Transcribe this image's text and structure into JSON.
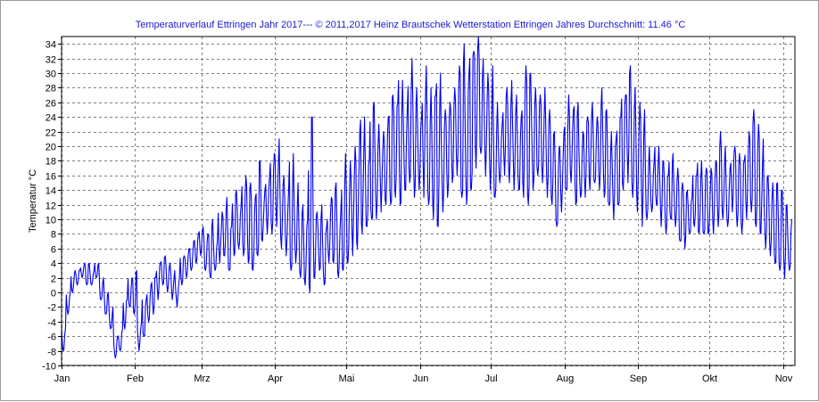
{
  "chart_data": {
    "type": "line",
    "title": "Temperaturverlauf Ettringen Jahr 2017--- © 2011,2017 Heinz Brautschek Wetterstation Ettringen Jahres Durchschnitt: 11.46 °C",
    "xlabel": "",
    "ylabel": "Temperatur °C",
    "ylim": [
      -10,
      35
    ],
    "yticks": [
      -10,
      -8,
      -6,
      -4,
      -2,
      0,
      2,
      4,
      6,
      8,
      10,
      12,
      14,
      16,
      18,
      20,
      22,
      24,
      26,
      28,
      30,
      32,
      34
    ],
    "xlim": [
      "2017-01-01",
      "2017-11-06"
    ],
    "xticks": [
      {
        "label": "Jan",
        "date": "2017-01-01"
      },
      {
        "label": "Feb",
        "date": "2017-02-01"
      },
      {
        "label": "Mrz",
        "date": "2017-03-01"
      },
      {
        "label": "Apr",
        "date": "2017-04-01"
      },
      {
        "label": "Mai",
        "date": "2017-05-01"
      },
      {
        "label": "Jun",
        "date": "2017-06-01"
      },
      {
        "label": "Jul",
        "date": "2017-07-01"
      },
      {
        "label": "Aug",
        "date": "2017-08-01"
      },
      {
        "label": "Sep",
        "date": "2017-09-01"
      },
      {
        "label": "Okt",
        "date": "2017-10-01"
      },
      {
        "label": "Nov",
        "date": "2017-11-01"
      }
    ],
    "grid": true,
    "legend": "none",
    "line_color": "#0000ee",
    "series": [
      {
        "name": "",
        "x": [
          "2017-01-01",
          "2017-01-03",
          "2017-01-05",
          "2017-01-07",
          "2017-01-09",
          "2017-01-11",
          "2017-01-13",
          "2017-01-15",
          "2017-01-17",
          "2017-01-19",
          "2017-01-21",
          "2017-01-23",
          "2017-01-25",
          "2017-01-27",
          "2017-01-29",
          "2017-01-31",
          "2017-02-02",
          "2017-02-04",
          "2017-02-06",
          "2017-02-08",
          "2017-02-10",
          "2017-02-12",
          "2017-02-14",
          "2017-02-16",
          "2017-02-18",
          "2017-02-20",
          "2017-02-22",
          "2017-02-24",
          "2017-02-26",
          "2017-02-28",
          "2017-03-02",
          "2017-03-04",
          "2017-03-06",
          "2017-03-08",
          "2017-03-10",
          "2017-03-12",
          "2017-03-14",
          "2017-03-16",
          "2017-03-18",
          "2017-03-20",
          "2017-03-22",
          "2017-03-24",
          "2017-03-26",
          "2017-03-28",
          "2017-03-30",
          "2017-04-01",
          "2017-04-03",
          "2017-04-05",
          "2017-04-07",
          "2017-04-09",
          "2017-04-11",
          "2017-04-13",
          "2017-04-15",
          "2017-04-17",
          "2017-04-19",
          "2017-04-21",
          "2017-04-23",
          "2017-04-25",
          "2017-04-27",
          "2017-04-29",
          "2017-05-01",
          "2017-05-03",
          "2017-05-05",
          "2017-05-07",
          "2017-05-09",
          "2017-05-11",
          "2017-05-13",
          "2017-05-15",
          "2017-05-17",
          "2017-05-19",
          "2017-05-21",
          "2017-05-23",
          "2017-05-25",
          "2017-05-27",
          "2017-05-29",
          "2017-05-31",
          "2017-06-02",
          "2017-06-04",
          "2017-06-06",
          "2017-06-08",
          "2017-06-10",
          "2017-06-12",
          "2017-06-14",
          "2017-06-16",
          "2017-06-18",
          "2017-06-20",
          "2017-06-22",
          "2017-06-24",
          "2017-06-26",
          "2017-06-28",
          "2017-06-30",
          "2017-07-02",
          "2017-07-04",
          "2017-07-06",
          "2017-07-08",
          "2017-07-10",
          "2017-07-12",
          "2017-07-14",
          "2017-07-16",
          "2017-07-18",
          "2017-07-20",
          "2017-07-22",
          "2017-07-24",
          "2017-07-26",
          "2017-07-28",
          "2017-07-30",
          "2017-08-01",
          "2017-08-03",
          "2017-08-05",
          "2017-08-07",
          "2017-08-09",
          "2017-08-11",
          "2017-08-13",
          "2017-08-15",
          "2017-08-17",
          "2017-08-19",
          "2017-08-21",
          "2017-08-23",
          "2017-08-25",
          "2017-08-27",
          "2017-08-29",
          "2017-08-31",
          "2017-09-02",
          "2017-09-04",
          "2017-09-06",
          "2017-09-08",
          "2017-09-10",
          "2017-09-12",
          "2017-09-14",
          "2017-09-16",
          "2017-09-18",
          "2017-09-20",
          "2017-09-22",
          "2017-09-24",
          "2017-09-26",
          "2017-09-28",
          "2017-09-30",
          "2017-10-02",
          "2017-10-04",
          "2017-10-06",
          "2017-10-08",
          "2017-10-10",
          "2017-10-12",
          "2017-10-14",
          "2017-10-16",
          "2017-10-18",
          "2017-10-20",
          "2017-10-22",
          "2017-10-24",
          "2017-10-26",
          "2017-10-28",
          "2017-10-30",
          "2017-11-01",
          "2017-11-03",
          "2017-11-05"
        ],
        "min": [
          -8,
          -3,
          0,
          1,
          2,
          1,
          1,
          2,
          -1,
          -3,
          -5,
          -9,
          -8,
          -5,
          -2,
          -3,
          -8,
          -6,
          -4,
          -3,
          -1,
          1,
          0,
          -1,
          -2,
          1,
          2,
          3,
          4,
          5,
          3,
          2,
          3,
          4,
          5,
          3,
          5,
          6,
          5,
          4,
          3,
          5,
          7,
          8,
          8,
          9,
          6,
          5,
          3,
          4,
          2,
          1,
          0,
          2,
          3,
          1,
          4,
          4,
          2,
          3,
          4,
          5,
          6,
          8,
          9,
          10,
          10,
          11,
          12,
          12,
          13,
          12,
          14,
          15,
          13,
          14,
          13,
          12,
          10,
          9,
          11,
          13,
          15,
          16,
          13,
          12,
          14,
          17,
          19,
          16,
          14,
          13,
          15,
          16,
          15,
          14,
          14,
          13,
          12,
          14,
          16,
          15,
          13,
          12,
          9,
          11,
          14,
          15,
          12,
          13,
          13,
          14,
          15,
          14,
          13,
          12,
          10,
          12,
          14,
          15,
          13,
          11,
          9,
          10,
          11,
          12,
          9,
          8,
          10,
          9,
          7,
          6,
          8,
          9,
          8,
          8,
          8,
          8,
          9,
          10,
          9,
          11,
          9,
          8,
          10,
          11,
          9,
          8,
          6,
          5,
          4,
          3,
          2,
          3
        ],
        "max": [
          -5,
          0,
          3,
          3,
          4,
          4,
          3,
          4,
          2,
          0,
          -2,
          -6,
          -5,
          -1,
          2,
          3,
          -4,
          -1,
          1,
          2,
          4,
          5,
          4,
          3,
          2,
          5,
          6,
          7,
          8,
          9,
          8,
          10,
          7,
          11,
          13,
          9,
          14,
          12,
          16,
          15,
          13,
          18,
          14,
          16,
          19,
          21,
          16,
          14,
          19,
          15,
          12,
          10,
          24,
          11,
          12,
          9,
          13,
          15,
          11,
          19,
          18,
          20,
          22,
          24,
          18,
          26,
          23,
          22,
          24,
          27,
          26,
          29,
          25,
          32,
          28,
          24,
          31,
          28,
          27,
          30,
          25,
          26,
          28,
          31,
          34,
          30,
          33,
          35,
          32,
          30,
          31,
          26,
          23,
          28,
          29,
          27,
          24,
          31,
          30,
          28,
          27,
          28,
          25,
          22,
          20,
          22,
          27,
          25,
          26,
          22,
          24,
          26,
          24,
          28,
          25,
          22,
          21,
          24,
          27,
          31,
          28,
          26,
          25,
          20,
          18,
          20,
          18,
          16,
          19,
          17,
          15,
          14,
          13,
          16,
          18,
          17,
          17,
          18,
          22,
          20,
          17,
          20,
          19,
          18,
          22,
          25,
          23,
          21,
          16,
          15,
          15,
          14,
          12,
          10
        ]
      }
    ]
  }
}
